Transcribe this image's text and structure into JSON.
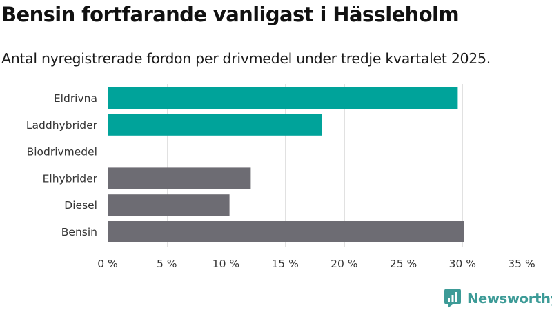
{
  "header": {
    "title": "Bensin fortfarande vanligast i Hässleholm",
    "subtitle": "Antal nyregistrerade fordon per drivmedel under tredje kvartalet 2025."
  },
  "chart_data": {
    "type": "bar",
    "orientation": "horizontal",
    "categories": [
      "Eldrivna",
      "Laddhybrider",
      "Biodrivmedel",
      "Elhybrider",
      "Diesel",
      "Bensin"
    ],
    "values": [
      29.6,
      18.1,
      0,
      12.1,
      10.3,
      30.1
    ],
    "colors": [
      "#00a39a",
      "#00a39a",
      "#00a39a",
      "#6d6c73",
      "#6d6c73",
      "#6d6c73"
    ],
    "xlim": [
      0,
      35
    ],
    "x_ticks": [
      0,
      5,
      10,
      15,
      20,
      25,
      30,
      35
    ],
    "x_tick_labels": [
      "0 %",
      "5 %",
      "10 %",
      "15 %",
      "20 %",
      "25 %",
      "30 %",
      "35 %"
    ],
    "grid": "vertical",
    "title": "Bensin fortfarande vanligast i Hässleholm",
    "xlabel": "",
    "ylabel": ""
  },
  "branding": {
    "logo_text": "Newsworthy",
    "logo_icon": "newsworthy-logo-icon",
    "color": "#3d9b97"
  }
}
